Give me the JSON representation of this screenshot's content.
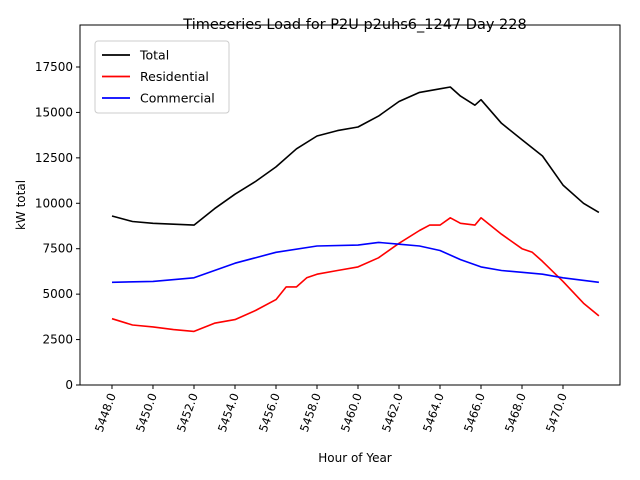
{
  "chart_data": {
    "type": "line",
    "title": "Timeseries Load for P2U p2uhs6_1247  Day 228",
    "xlabel": "Hour of Year",
    "ylabel": "kW total",
    "xlim": [
      5446.44,
      5472.78
    ],
    "ylim": [
      0,
      19811
    ],
    "xticks": [
      5448,
      5450,
      5452,
      5454,
      5456,
      5458,
      5460,
      5462,
      5464,
      5466,
      5468,
      5470
    ],
    "xtick_labels": [
      "5448.0",
      "5450.0",
      "5452.0",
      "5454.0",
      "5456.0",
      "5458.0",
      "5460.0",
      "5462.0",
      "5464.0",
      "5466.0",
      "5468.0",
      "5470.0"
    ],
    "yticks": [
      0,
      2500,
      5000,
      7500,
      10000,
      12500,
      15000,
      17500
    ],
    "ytick_labels": [
      "0",
      "2500",
      "5000",
      "7500",
      "10000",
      "12500",
      "15000",
      "17500"
    ],
    "grid": false,
    "legend_position": "top-left",
    "series": [
      {
        "name": "Total",
        "color": "#000000",
        "x": [
          5448,
          5449,
          5450,
          5451,
          5452,
          5453,
          5454,
          5455,
          5456,
          5457,
          5458,
          5459,
          5460,
          5461,
          5462,
          5463,
          5464,
          5464.5,
          5465,
          5465.7,
          5466,
          5467,
          5468,
          5469,
          5470,
          5471,
          5471.75
        ],
        "y": [
          9300,
          9000,
          8900,
          8850,
          8800,
          9700,
          10500,
          11200,
          12000,
          13000,
          13700,
          14000,
          14200,
          14800,
          15600,
          16100,
          16300,
          16400,
          15900,
          15400,
          15700,
          14400,
          13500,
          12600,
          11000,
          10000,
          9500
        ]
      },
      {
        "name": "Residential",
        "color": "#ff0000",
        "x": [
          5448,
          5449,
          5450,
          5451,
          5452,
          5453,
          5454,
          5455,
          5456,
          5456.5,
          5457,
          5457.5,
          5458,
          5459,
          5460,
          5461,
          5462,
          5463,
          5463.5,
          5464,
          5464.5,
          5465,
          5465.7,
          5466,
          5467,
          5468,
          5468.5,
          5469,
          5470,
          5471,
          5471.75
        ],
        "y": [
          3650,
          3300,
          3200,
          3050,
          2950,
          3400,
          3600,
          4100,
          4700,
          5400,
          5400,
          5900,
          6100,
          6300,
          6500,
          7000,
          7800,
          8500,
          8800,
          8800,
          9200,
          8900,
          8800,
          9200,
          8300,
          7500,
          7300,
          6800,
          5700,
          4500,
          3800
        ]
      },
      {
        "name": "Commercial",
        "color": "#0000ff",
        "x": [
          5448,
          5450,
          5452,
          5454,
          5456,
          5458,
          5460,
          5461,
          5462,
          5463,
          5464,
          5465,
          5466,
          5467,
          5468,
          5469,
          5470,
          5471.75
        ],
        "y": [
          5650,
          5700,
          5900,
          6700,
          7300,
          7650,
          7700,
          7850,
          7750,
          7650,
          7400,
          6900,
          6500,
          6300,
          6200,
          6100,
          5900,
          5650
        ]
      }
    ]
  }
}
